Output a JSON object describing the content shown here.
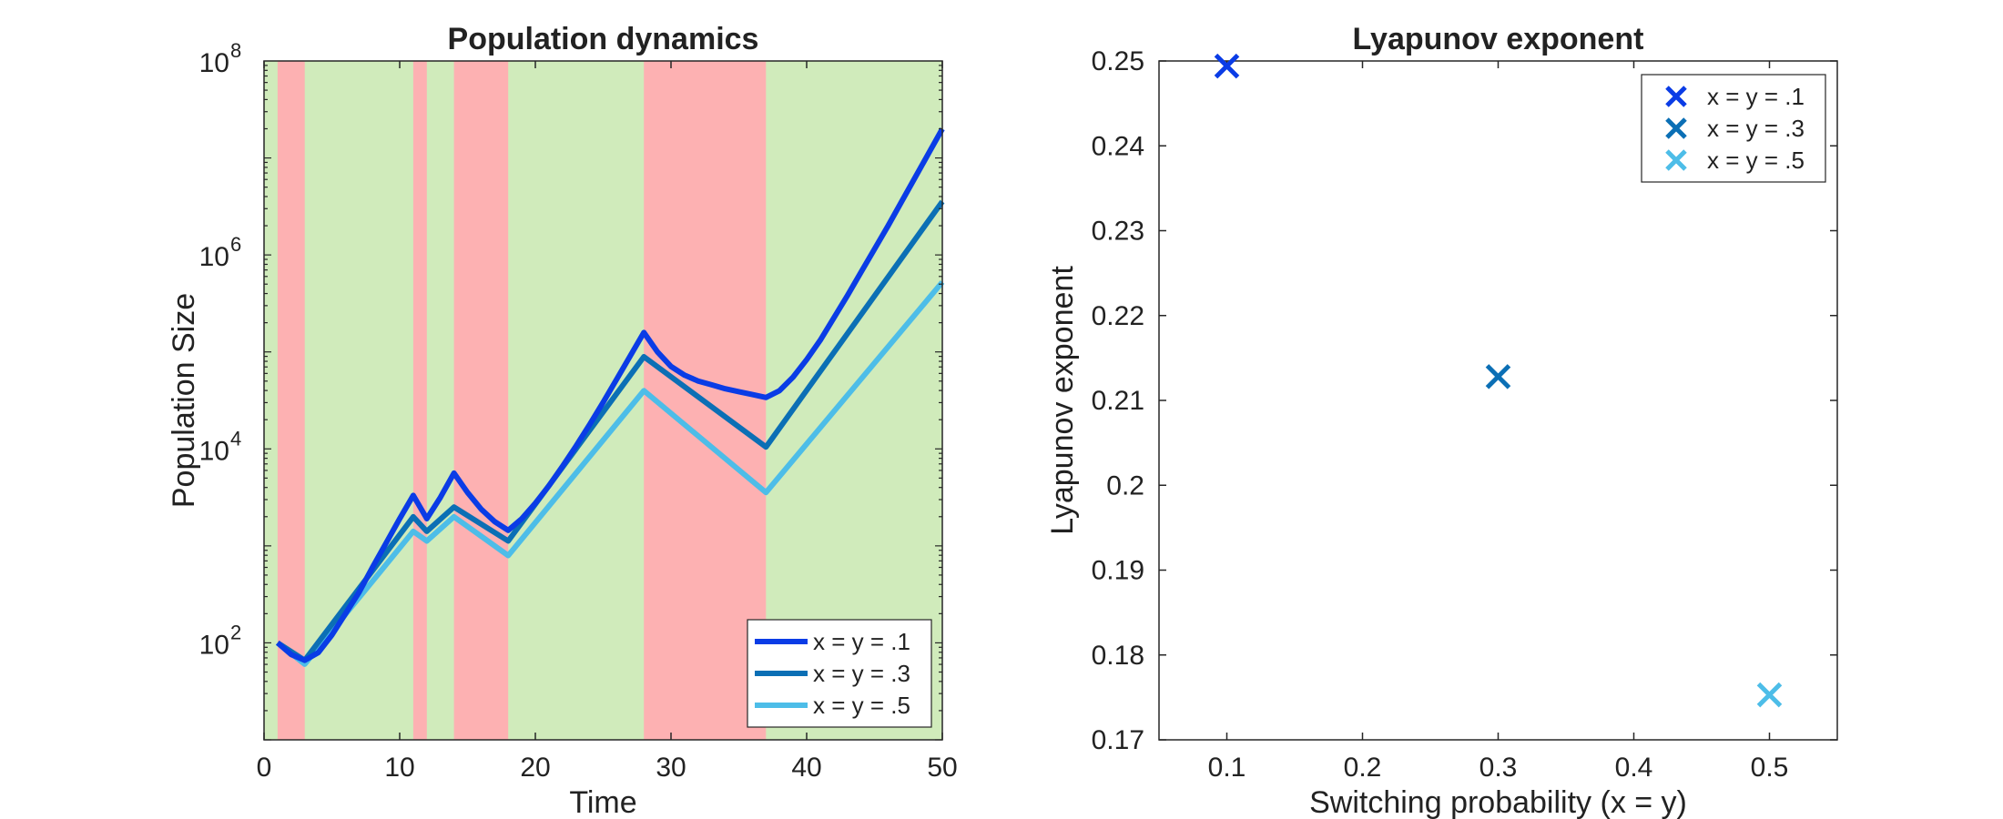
{
  "colors": {
    "series": [
      "#0a3ce6",
      "#0b6fb5",
      "#4dbde8"
    ],
    "regime_good": "#d0ebbb",
    "regime_bad": "#fdb1b2",
    "axis": "#262626"
  },
  "chart_data": [
    {
      "type": "line",
      "title": "Population dynamics",
      "xlabel": "Time",
      "ylabel": "Population Size",
      "xlim": [
        0,
        50
      ],
      "ylim_log10": [
        1,
        8
      ],
      "yscale": "log",
      "xticks": [
        0,
        10,
        20,
        30,
        40,
        50
      ],
      "yticks": [
        {
          "value": 2,
          "base": "10",
          "exp": "2"
        },
        {
          "value": 4,
          "base": "10",
          "exp": "4"
        },
        {
          "value": 6,
          "base": "10",
          "exp": "6"
        },
        {
          "value": 8,
          "base": "10",
          "exp": "8"
        }
      ],
      "grid": false,
      "legend_position": "bottom-right",
      "background_regime": "good",
      "shaded_intervals": [
        [
          1,
          3
        ],
        [
          11,
          12
        ],
        [
          14,
          18
        ],
        [
          28,
          37
        ]
      ],
      "series": [
        {
          "name": "x = y = .1",
          "x": [
            1,
            2,
            3,
            4,
            5,
            6,
            7,
            8,
            9,
            10,
            11,
            12,
            13,
            14,
            15,
            16,
            17,
            18,
            19,
            20,
            21,
            22,
            23,
            24,
            25,
            26,
            27,
            28,
            29,
            30,
            31,
            32,
            33,
            34,
            35,
            36,
            37,
            38,
            39,
            40,
            41,
            42,
            43,
            44,
            45,
            46,
            47,
            48,
            49,
            50
          ],
          "log10_y": [
            2.0,
            1.88,
            1.82,
            1.9,
            2.08,
            2.3,
            2.52,
            2.78,
            3.03,
            3.28,
            3.52,
            3.28,
            3.5,
            3.75,
            3.55,
            3.38,
            3.25,
            3.16,
            3.28,
            3.44,
            3.62,
            3.82,
            4.03,
            4.25,
            4.48,
            4.72,
            4.96,
            5.2,
            5.0,
            4.85,
            4.76,
            4.7,
            4.66,
            4.62,
            4.59,
            4.56,
            4.53,
            4.6,
            4.74,
            4.92,
            5.12,
            5.35,
            5.58,
            5.82,
            6.06,
            6.3,
            6.55,
            6.8,
            7.05,
            7.3
          ]
        },
        {
          "name": "x = y = .3",
          "x": [
            1,
            3,
            11,
            12,
            14,
            18,
            28,
            37,
            50
          ],
          "log10_y": [
            2.0,
            1.82,
            3.3,
            3.15,
            3.4,
            3.05,
            4.95,
            4.02,
            6.55
          ]
        },
        {
          "name": "x = y = .5",
          "x": [
            1,
            3,
            11,
            12,
            14,
            18,
            28,
            37,
            50
          ],
          "log10_y": [
            2.0,
            1.78,
            3.15,
            3.05,
            3.3,
            2.9,
            4.6,
            3.55,
            5.72
          ]
        }
      ]
    },
    {
      "type": "scatter",
      "title": "Lyapunov exponent",
      "xlabel": "Switching probability (x = y)",
      "ylabel": "Lyapunov exponent",
      "xlim": [
        0.05,
        0.55
      ],
      "ylim": [
        0.17,
        0.25
      ],
      "xticks": [
        "0.1",
        "0.2",
        "0.3",
        "0.4",
        "0.5"
      ],
      "yticks": [
        "0.17",
        "0.18",
        "0.19",
        "0.2",
        "0.21",
        "0.22",
        "0.23",
        "0.24",
        "0.25"
      ],
      "marker": "x",
      "grid": false,
      "legend_position": "top-right",
      "series": [
        {
          "name": "x = y = .1",
          "x": [
            0.1
          ],
          "y": [
            0.2494
          ]
        },
        {
          "name": "x = y = .3",
          "x": [
            0.3
          ],
          "y": [
            0.2128
          ]
        },
        {
          "name": "x = y = .5",
          "x": [
            0.5
          ],
          "y": [
            0.1753
          ]
        }
      ]
    }
  ]
}
